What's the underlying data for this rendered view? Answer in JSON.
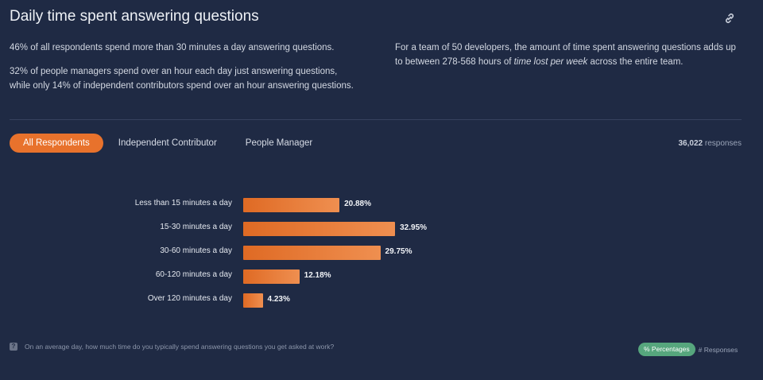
{
  "header": {
    "title": "Daily time spent answering questions",
    "link_icon": "link-icon"
  },
  "summary": {
    "left_p1": "46% of all respondents spend more than 30 minutes a day answering questions.",
    "left_p2": "32% of people managers spend over an hour each day just answering questions, while only 14% of independent contributors spend over an hour answering questions.",
    "right_p1_a": "For a team of 50 developers, the amount of time spent answering questions adds up to between 278-568 hours of ",
    "right_p1_em": "time lost per week",
    "right_p1_b": " across the entire team."
  },
  "tabs": [
    {
      "label": "All Respondents",
      "active": true
    },
    {
      "label": "Independent Contributor",
      "active": false
    },
    {
      "label": "People Manager",
      "active": false
    }
  ],
  "responses": {
    "count": "36,022",
    "suffix": "responses"
  },
  "chart_data": {
    "type": "bar",
    "orientation": "horizontal",
    "categories": [
      "Less than 15 minutes a day",
      "15-30 minutes a day",
      "30-60 minutes a day",
      "60-120 minutes a day",
      "Over 120 minutes a day"
    ],
    "values": [
      20.88,
      32.95,
      29.75,
      12.18,
      4.23
    ],
    "value_labels": [
      "20.88%",
      "32.95%",
      "29.75%",
      "12.18%",
      "4.23%"
    ],
    "bar_color": "#e8722c"
  },
  "footer": {
    "question_icon": "help-icon",
    "question": "On an average day, how much time do you typically spend answering questions you get asked at work?",
    "toggle_on": "% Percentages",
    "toggle_off": "# Responses",
    "toggle_on_color": "#56a67d"
  }
}
